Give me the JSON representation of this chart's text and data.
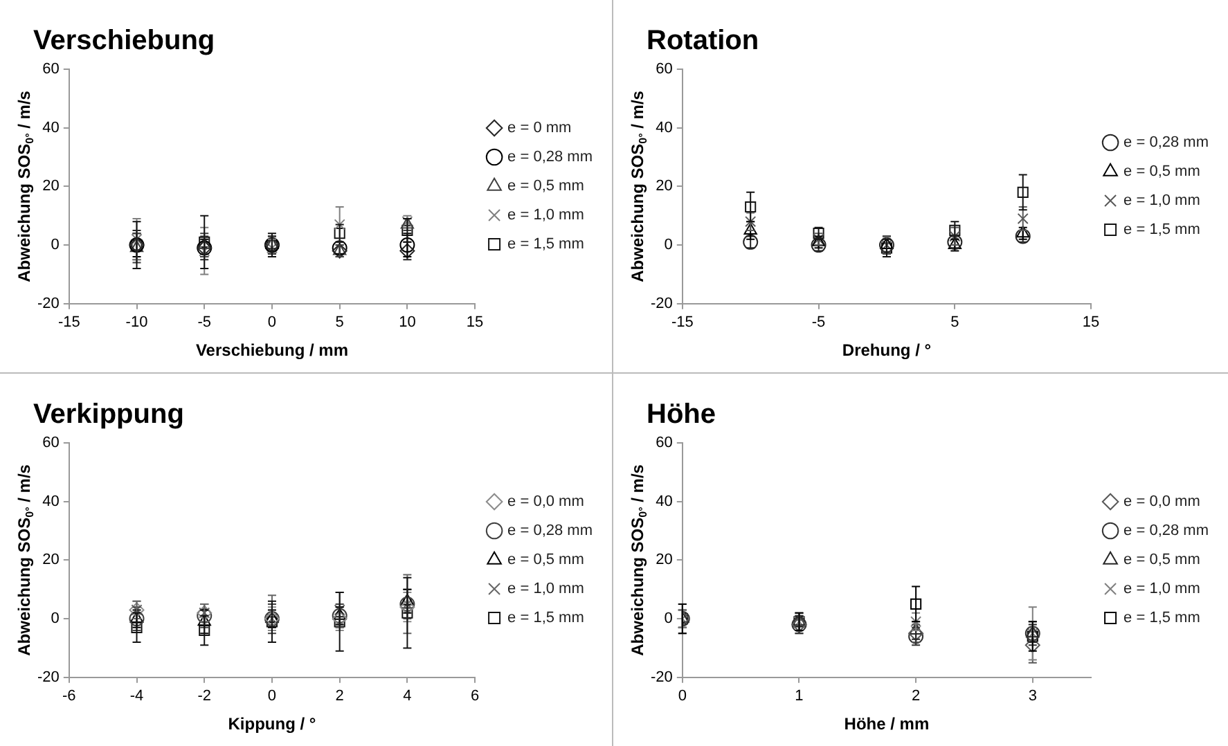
{
  "chart_data": [
    {
      "type": "scatter",
      "title": "Verschiebung",
      "xlabel": "Verschiebung / mm",
      "ylabel": "Abweichung SOS$_{0°}$ / m/s",
      "xlim": [
        -15,
        15
      ],
      "xticks": [
        -15,
        -10,
        -5,
        0,
        5,
        10,
        15
      ],
      "ylim": [
        -20,
        60
      ],
      "yticks": [
        -20,
        0,
        20,
        40,
        60
      ],
      "legend": "right",
      "grid": false,
      "x": [
        -10,
        -5,
        0,
        5,
        10
      ],
      "series": [
        {
          "name": "e = 0 mm",
          "color": "#262626",
          "marker": "diamond",
          "values": [
            0,
            -1,
            0,
            -2,
            -2
          ],
          "errors": [
            5,
            4,
            3,
            2,
            3
          ]
        },
        {
          "name": "e = 0,28 mm",
          "color": "#000000",
          "marker": "circle",
          "values": [
            0,
            -1,
            0,
            -1,
            0
          ],
          "errors": [
            4,
            3,
            3,
            2,
            4
          ]
        },
        {
          "name": "e = 0,5 mm",
          "color": "#404040",
          "marker": "triangle",
          "values": [
            -1,
            0,
            0,
            -2,
            7
          ],
          "errors": [
            5,
            4,
            3,
            2,
            2
          ]
        },
        {
          "name": "e = 1,0 mm",
          "color": "#7f7f7f",
          "marker": "cross",
          "values": [
            2,
            -2,
            -1,
            7,
            8
          ],
          "errors": [
            7,
            8,
            3,
            6,
            2
          ]
        },
        {
          "name": "e = 1,5 mm",
          "color": "#141414",
          "marker": "square",
          "values": [
            0,
            1,
            0,
            4,
            5
          ],
          "errors": [
            8,
            9,
            4,
            3,
            4
          ]
        }
      ]
    },
    {
      "type": "scatter",
      "title": "Rotation",
      "xlabel": "Drehung / °",
      "ylabel": "Abweichung SOS$_{0°}$ / m/s",
      "xlim": [
        -15,
        15
      ],
      "xticks": [
        -15,
        -5,
        5,
        15
      ],
      "ylim": [
        -20,
        60
      ],
      "yticks": [
        -20,
        0,
        20,
        40,
        60
      ],
      "legend": "right",
      "grid": false,
      "x": [
        -10,
        -5,
        0,
        5,
        10
      ],
      "series": [
        {
          "name": "e = 0,28 mm",
          "color": "#262626",
          "marker": "circle",
          "values": [
            1,
            0,
            0,
            1,
            3
          ],
          "errors": [
            2,
            2,
            3,
            2,
            2
          ]
        },
        {
          "name": "e = 0,5 mm",
          "color": "#000000",
          "marker": "triangle",
          "values": [
            5,
            1,
            0,
            0,
            4
          ],
          "errors": [
            3,
            2,
            3,
            2,
            2
          ]
        },
        {
          "name": "e = 1,0 mm",
          "color": "#595959",
          "marker": "cross",
          "values": [
            8,
            2,
            0,
            3,
            9
          ],
          "errors": [
            3,
            2,
            3,
            3,
            4
          ]
        },
        {
          "name": "e = 1,5 mm",
          "color": "#141414",
          "marker": "square",
          "values": [
            13,
            4,
            -1,
            5,
            18
          ],
          "errors": [
            5,
            2,
            3,
            3,
            6
          ]
        }
      ]
    },
    {
      "type": "scatter",
      "title": "Verkippung",
      "xlabel": "Kippung / °",
      "ylabel": "Abweichung SOS$_{0°}$ / m/s",
      "xlim": [
        -6,
        6
      ],
      "xticks": [
        -6,
        -4,
        -2,
        0,
        2,
        4,
        6
      ],
      "ylim": [
        -20,
        60
      ],
      "yticks": [
        -20,
        0,
        20,
        40,
        60
      ],
      "legend": "right",
      "grid": false,
      "x": [
        -4,
        -2,
        0,
        2,
        4
      ],
      "series": [
        {
          "name": "e = 0,0 mm",
          "color": "#8c8c8c",
          "marker": "diamond",
          "values": [
            3,
            2,
            0,
            0,
            4
          ],
          "errors": [
            3,
            3,
            4,
            4,
            5
          ]
        },
        {
          "name": "e = 0,28 mm",
          "color": "#404040",
          "marker": "circle",
          "values": [
            0,
            1,
            0,
            1,
            5
          ],
          "errors": [
            4,
            4,
            5,
            4,
            5
          ]
        },
        {
          "name": "e = 0,5 mm",
          "color": "#000000",
          "marker": "triangle",
          "values": [
            0,
            -1,
            0,
            1,
            6
          ],
          "errors": [
            3,
            4,
            3,
            3,
            4
          ]
        },
        {
          "name": "e = 1,0 mm",
          "color": "#666666",
          "marker": "cross",
          "values": [
            3,
            2,
            0,
            3,
            5
          ],
          "errors": [
            3,
            3,
            8,
            6,
            10
          ]
        },
        {
          "name": "e = 1,5 mm",
          "color": "#141414",
          "marker": "square",
          "values": [
            -3,
            -4,
            -1,
            -1,
            2
          ],
          "errors": [
            5,
            5,
            7,
            10,
            12
          ]
        }
      ]
    },
    {
      "type": "scatter",
      "title": "Höhe",
      "xlabel": "Höhe / mm",
      "ylabel": "Abweichung SOS$_{0°}$ / m/s",
      "xlim": [
        0,
        3.5
      ],
      "xticks": [
        0,
        1,
        2,
        3
      ],
      "ylim": [
        -20,
        60
      ],
      "yticks": [
        -20,
        0,
        20,
        40,
        60
      ],
      "legend": "right",
      "grid": false,
      "x": [
        0,
        1,
        2,
        3
      ],
      "series": [
        {
          "name": "e = 0,0 mm",
          "color": "#595959",
          "marker": "diamond",
          "values": [
            0,
            -2,
            -5,
            -9
          ],
          "errors": [
            5,
            3,
            3,
            6
          ]
        },
        {
          "name": "e = 0,28 mm",
          "color": "#333333",
          "marker": "circle",
          "values": [
            0,
            -2,
            -6,
            -5
          ],
          "errors": [
            3,
            3,
            3,
            4
          ]
        },
        {
          "name": "e = 0,5 mm",
          "color": "#262626",
          "marker": "triangle",
          "values": [
            0,
            -1,
            -4,
            -5
          ],
          "errors": [
            3,
            3,
            3,
            3
          ]
        },
        {
          "name": "e = 1,0 mm",
          "color": "#7f7f7f",
          "marker": "cross",
          "values": [
            0,
            -1,
            -1,
            -5
          ],
          "errors": [
            3,
            3,
            3,
            9
          ]
        },
        {
          "name": "e = 1,5 mm",
          "color": "#000000",
          "marker": "square",
          "values": [
            0,
            -1,
            5,
            -6
          ],
          "errors": [
            5,
            3,
            6,
            5
          ]
        }
      ]
    }
  ]
}
